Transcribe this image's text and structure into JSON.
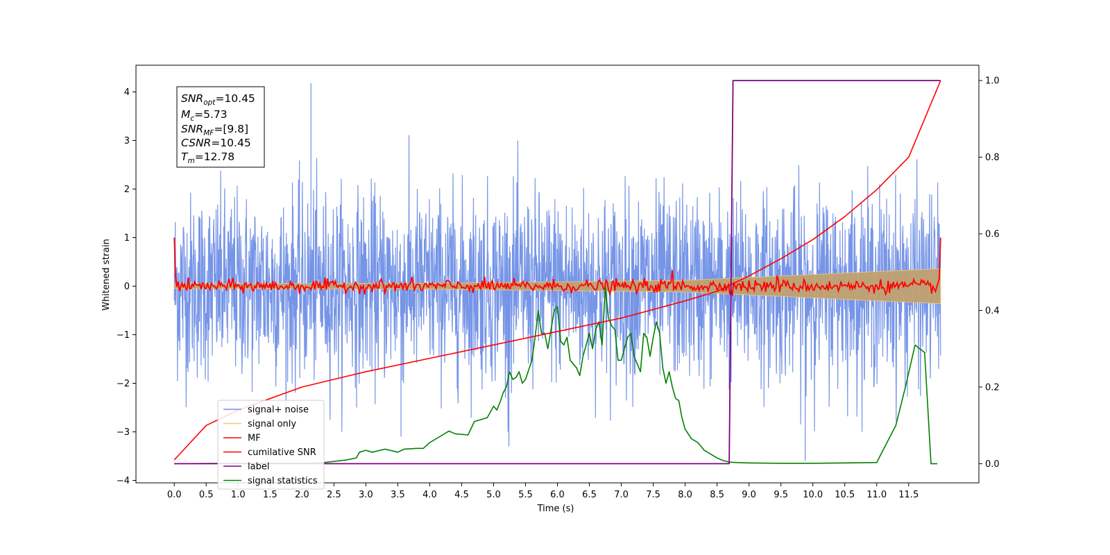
{
  "chart_data": {
    "type": "line",
    "xlabel": "Time (s)",
    "ylabel": "Whitened strain",
    "xlim": [
      -0.6,
      12.6
    ],
    "ylim_left": [
      -4.05,
      4.55
    ],
    "ylim_right": [
      -0.05,
      1.04
    ],
    "x_ticks": [
      "0.0",
      "0.5",
      "1.0",
      "1.5",
      "2.0",
      "2.5",
      "3.0",
      "3.5",
      "4.0",
      "4.5",
      "5.0",
      "5.5",
      "6.0",
      "6.5",
      "7.0",
      "7.5",
      "8.0",
      "8.5",
      "9.0",
      "9.5",
      "10.0",
      "10.5",
      "11.0",
      "11.5"
    ],
    "y_ticks_left": [
      "4",
      "3",
      "2",
      "1",
      "0",
      "−1",
      "−2",
      "−3",
      "−4"
    ],
    "y_ticks_right": [
      "1.0",
      "0.8",
      "0.6",
      "0.4",
      "0.2",
      "0.0"
    ],
    "info_box": {
      "snr_opt": {
        "base": "SNR",
        "sub": "opt",
        "value": "=10.45"
      },
      "mc": {
        "base": "M",
        "sub": "c",
        "value": "=5.73"
      },
      "snr_mf": {
        "base": "SNR",
        "sub": "MF",
        "value": "=[9.8]"
      },
      "csnr": {
        "base": "CSNR",
        "sub": "",
        "value": "=10.45"
      },
      "tm": {
        "base": "T",
        "sub": "m",
        "value": "=12.78"
      }
    },
    "legend": {
      "placement": "lower-left",
      "entries": [
        {
          "label": "signal+ noise",
          "color": "#6f8fe6"
        },
        {
          "label": "signal only",
          "color": "#f5c67a"
        },
        {
          "label": "MF",
          "color": "#ff0000"
        },
        {
          "label": "cumilative SNR",
          "color": "#ff0000"
        },
        {
          "label": "label",
          "color": "#800080"
        },
        {
          "label": "signal statistics",
          "color": "#008000"
        }
      ]
    },
    "series": [
      {
        "name": "signal+ noise",
        "axis": "left",
        "description_range": [
          0,
          12
        ],
        "approx_band": [
          -2.2,
          2.2
        ],
        "peak_values": [
          [
            2.14,
            4.18
          ],
          [
            9.88,
            -3.6
          ],
          [
            5.24,
            -3.3
          ],
          [
            3.55,
            -3.1
          ]
        ]
      },
      {
        "name": "signal only",
        "axis": "left",
        "envelope": {
          "x": [
            0,
            4,
            8,
            12
          ],
          "amplitude": [
            0.05,
            0.06,
            0.12,
            0.36
          ]
        }
      },
      {
        "name": "MF",
        "axis": "left",
        "start_value": 1.0,
        "end_value": 1.0,
        "typical_range": [
          -0.15,
          0.3
        ]
      },
      {
        "name": "cumilative SNR",
        "axis": "right",
        "x": [
          0,
          0.5,
          1,
          2,
          3,
          4,
          5,
          6,
          7,
          8,
          8.5,
          9,
          9.5,
          10,
          10.5,
          11,
          11.5,
          12
        ],
        "values": [
          0.01,
          0.1,
          0.14,
          0.2,
          0.24,
          0.275,
          0.31,
          0.345,
          0.38,
          0.425,
          0.45,
          0.49,
          0.535,
          0.585,
          0.645,
          0.715,
          0.8,
          1.0
        ]
      },
      {
        "name": "label",
        "axis": "right",
        "x": [
          0,
          8.69,
          8.75,
          12
        ],
        "values": [
          0.0,
          0.0,
          1.0,
          1.0
        ]
      },
      {
        "name": "signal statistics",
        "axis": "right",
        "x": [
          0,
          1,
          2,
          2.3,
          2.5,
          2.7,
          2.85,
          2.9,
          3.0,
          3.1,
          3.3,
          3.5,
          3.6,
          3.8,
          3.9,
          4.0,
          4.1,
          4.2,
          4.3,
          4.4,
          4.6,
          4.7,
          4.8,
          4.9,
          5.0,
          5.05,
          5.1,
          5.15,
          5.2,
          5.25,
          5.3,
          5.35,
          5.4,
          5.45,
          5.5,
          5.55,
          5.6,
          5.65,
          5.7,
          5.75,
          5.8,
          5.85,
          5.9,
          5.95,
          6.0,
          6.05,
          6.1,
          6.15,
          6.2,
          6.25,
          6.3,
          6.35,
          6.4,
          6.45,
          6.5,
          6.55,
          6.6,
          6.65,
          6.7,
          6.75,
          6.8,
          6.85,
          6.9,
          6.95,
          7.0,
          7.05,
          7.1,
          7.15,
          7.2,
          7.25,
          7.3,
          7.35,
          7.4,
          7.45,
          7.5,
          7.55,
          7.6,
          7.65,
          7.7,
          7.75,
          7.8,
          7.85,
          7.9,
          7.95,
          8.0,
          8.1,
          8.2,
          8.3,
          8.4,
          8.5,
          8.6,
          8.7,
          8.8,
          9.0,
          9.5,
          10.0,
          10.5,
          11.0,
          11.3,
          11.45,
          11.6,
          11.75,
          11.85,
          11.95
        ],
        "values": [
          0.0,
          0.001,
          0.001,
          0.002,
          0.006,
          0.01,
          0.015,
          0.03,
          0.035,
          0.03,
          0.038,
          0.03,
          0.038,
          0.04,
          0.04,
          0.055,
          0.065,
          0.075,
          0.085,
          0.078,
          0.075,
          0.11,
          0.115,
          0.12,
          0.15,
          0.14,
          0.16,
          0.185,
          0.2,
          0.24,
          0.22,
          0.225,
          0.24,
          0.21,
          0.22,
          0.245,
          0.27,
          0.33,
          0.4,
          0.34,
          0.34,
          0.3,
          0.35,
          0.4,
          0.41,
          0.32,
          0.31,
          0.33,
          0.27,
          0.26,
          0.25,
          0.23,
          0.28,
          0.31,
          0.34,
          0.3,
          0.35,
          0.37,
          0.31,
          0.46,
          0.38,
          0.36,
          0.35,
          0.27,
          0.27,
          0.3,
          0.33,
          0.34,
          0.28,
          0.26,
          0.24,
          0.34,
          0.33,
          0.28,
          0.33,
          0.37,
          0.34,
          0.25,
          0.21,
          0.24,
          0.2,
          0.17,
          0.165,
          0.12,
          0.09,
          0.065,
          0.055,
          0.035,
          0.025,
          0.015,
          0.008,
          0.004,
          0.003,
          0.002,
          0.001,
          0.001,
          0.002,
          0.003,
          0.1,
          0.2,
          0.31,
          0.29,
          0.0,
          0.0
        ]
      }
    ]
  }
}
